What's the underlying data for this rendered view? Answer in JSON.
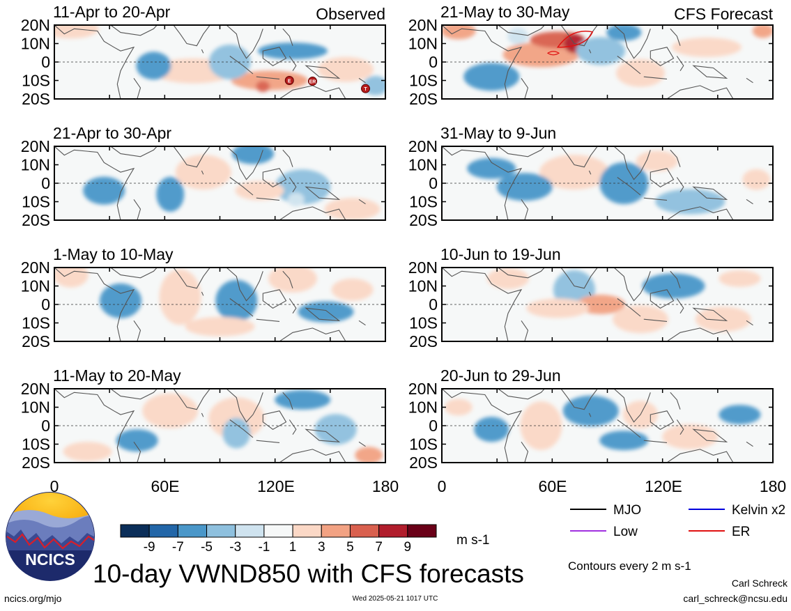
{
  "figure": {
    "main_title": "10-day VWND850 with CFS forecasts",
    "observed_label": "Observed",
    "forecast_label": "CFS Forecast",
    "y_ticks": [
      "20N",
      "10N",
      "0",
      "10S",
      "20S"
    ],
    "x_ticks": [
      "0",
      "60E",
      "120E",
      "180"
    ],
    "colorbar_ticks": [
      "-9",
      "-7",
      "-5",
      "-3",
      "-1",
      "1",
      "3",
      "5",
      "7",
      "9"
    ],
    "colorbar_colors": [
      "#0b2e59",
      "#2266a8",
      "#4a97c9",
      "#8ec0de",
      "#cfe3ef",
      "#f6f8f8",
      "#fbd8c6",
      "#f2a283",
      "#d9604e",
      "#b11d2c",
      "#6a0018"
    ],
    "units": "m s-1",
    "contour_note": "Contours every 2 m s-1",
    "legend": [
      {
        "label": "MJO",
        "color": "#000000"
      },
      {
        "label": "Kelvin x2",
        "color": "#0000dd"
      },
      {
        "label": "Low",
        "color": "#a030e0"
      },
      {
        "label": "ER",
        "color": "#e01010"
      }
    ],
    "logo_text": "NCICS",
    "website": "ncics.org/mjo",
    "timestamp": "Wed 2025-05-21 1017 UTC",
    "author": "Carl Schreck",
    "email": "carl_schreck@ncsu.edu"
  },
  "chart_data": [
    {
      "type": "heatmap",
      "title": "11-Apr to 20-Apr",
      "group": "Observed",
      "variable": "VWND850 anomaly",
      "x_range": [
        0,
        180
      ],
      "y_range": [
        -20,
        20
      ],
      "markers": [
        "E",
        "ER",
        "T"
      ]
    },
    {
      "type": "heatmap",
      "title": "21-Apr to 30-Apr",
      "group": "Observed",
      "variable": "VWND850 anomaly",
      "x_range": [
        0,
        180
      ],
      "y_range": [
        -20,
        20
      ]
    },
    {
      "type": "heatmap",
      "title": "1-May to 10-May",
      "group": "Observed",
      "variable": "VWND850 anomaly",
      "x_range": [
        0,
        180
      ],
      "y_range": [
        -20,
        20
      ]
    },
    {
      "type": "heatmap",
      "title": "11-May to 20-May",
      "group": "Observed",
      "variable": "VWND850 anomaly",
      "x_range": [
        0,
        180
      ],
      "y_range": [
        -20,
        20
      ]
    },
    {
      "type": "heatmap",
      "title": "21-May to 30-May",
      "group": "CFS Forecast",
      "variable": "VWND850 anomaly",
      "x_range": [
        0,
        180
      ],
      "y_range": [
        -20,
        20
      ]
    },
    {
      "type": "heatmap",
      "title": "31-May to 9-Jun",
      "group": "CFS Forecast",
      "variable": "VWND850 anomaly",
      "x_range": [
        0,
        180
      ],
      "y_range": [
        -20,
        20
      ]
    },
    {
      "type": "heatmap",
      "title": "10-Jun to 19-Jun",
      "group": "CFS Forecast",
      "variable": "VWND850 anomaly",
      "x_range": [
        0,
        180
      ],
      "y_range": [
        -20,
        20
      ]
    },
    {
      "type": "heatmap",
      "title": "20-Jun to 29-Jun",
      "group": "CFS Forecast",
      "variable": "VWND850 anomaly",
      "x_range": [
        0,
        180
      ],
      "y_range": [
        -20,
        20
      ]
    }
  ]
}
